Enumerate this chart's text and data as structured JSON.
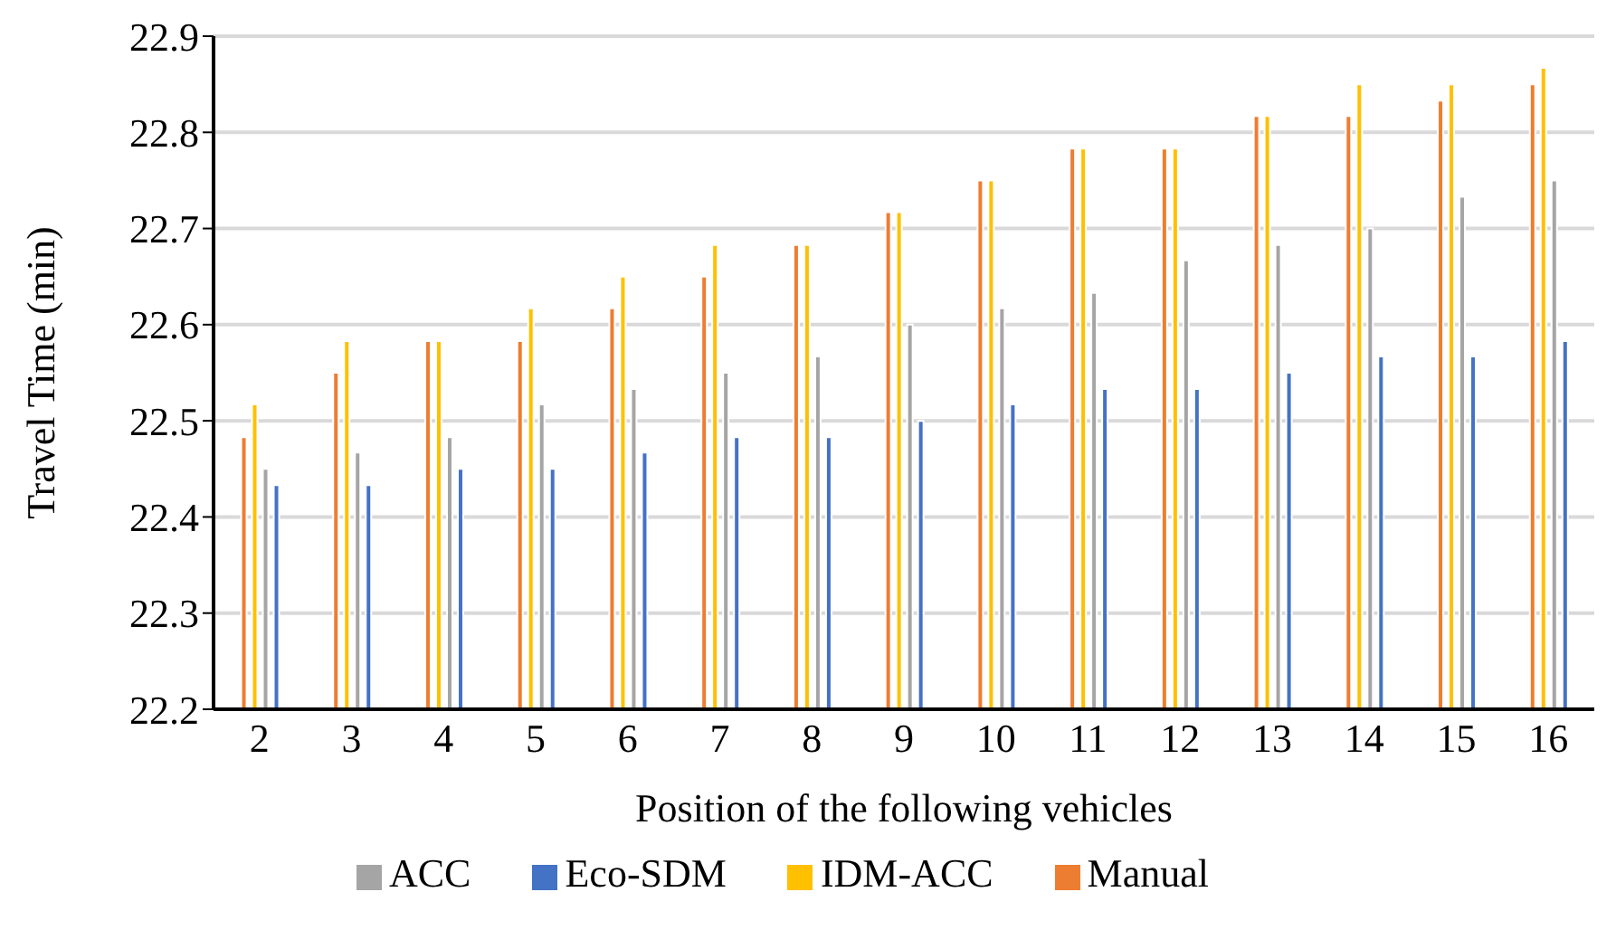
{
  "chart_data": {
    "type": "bar",
    "xlabel": "Position of the following vehicles",
    "ylabel": "Travel Time (min)",
    "categories": [
      "2",
      "3",
      "4",
      "5",
      "6",
      "7",
      "8",
      "9",
      "10",
      "11",
      "12",
      "13",
      "14",
      "15",
      "16"
    ],
    "series": [
      {
        "name": "Manual",
        "color": "#ed7d31",
        "values": [
          22.483,
          22.55,
          22.583,
          22.583,
          22.617,
          22.65,
          22.683,
          22.717,
          22.75,
          22.783,
          22.783,
          22.817,
          22.817,
          22.833,
          22.85
        ]
      },
      {
        "name": "IDM-ACC",
        "color": "#ffc000",
        "values": [
          22.517,
          22.583,
          22.583,
          22.617,
          22.65,
          22.683,
          22.683,
          22.717,
          22.75,
          22.783,
          22.783,
          22.817,
          22.85,
          22.85,
          22.867
        ]
      },
      {
        "name": "ACC",
        "color": "#a5a5a5",
        "values": [
          22.45,
          22.467,
          22.483,
          22.517,
          22.533,
          22.55,
          22.567,
          22.6,
          22.617,
          22.633,
          22.667,
          22.683,
          22.7,
          22.733,
          22.75
        ]
      },
      {
        "name": "Eco-SDM",
        "color": "#4472c4",
        "values": [
          22.433,
          22.433,
          22.45,
          22.45,
          22.467,
          22.483,
          22.483,
          22.5,
          22.517,
          22.533,
          22.533,
          22.55,
          22.567,
          22.567,
          22.583
        ]
      }
    ],
    "ylim": [
      22.2,
      22.9
    ],
    "yticks": [
      22.2,
      22.3,
      22.4,
      22.5,
      22.6,
      22.7,
      22.8,
      22.9
    ],
    "grid": "y",
    "legend": "bottom"
  }
}
